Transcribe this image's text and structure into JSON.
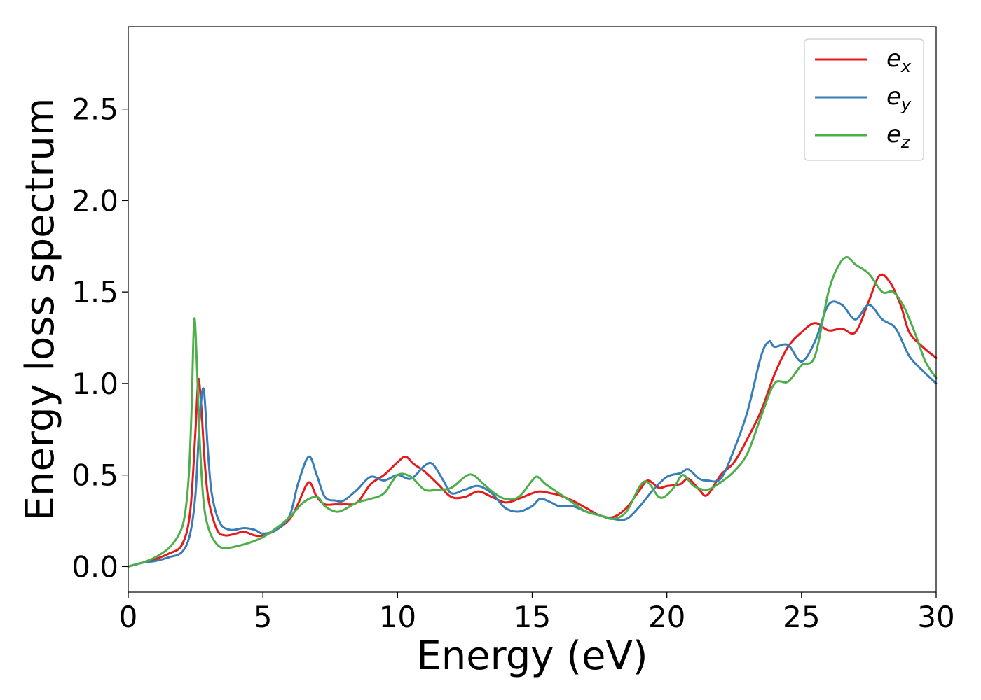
{
  "chart_data": {
    "type": "line",
    "title": "",
    "xlabel": "Energy (eV)",
    "ylabel": "Energy loss spectrum",
    "xlim": [
      0,
      30
    ],
    "ylim": [
      -0.14,
      2.95
    ],
    "xticks": [
      "0",
      "5",
      "10",
      "15",
      "20",
      "25",
      "30"
    ],
    "yticks": [
      "0.0",
      "0.5",
      "1.0",
      "1.5",
      "2.0",
      "2.5"
    ],
    "grid": false,
    "legend_position": "top-right",
    "series": [
      {
        "name": "e_x",
        "name_base": "e",
        "name_sub": "x",
        "color": "#e41a1c",
        "x": [
          0,
          0.5,
          1.0,
          1.5,
          2.0,
          2.3,
          2.5,
          2.6,
          2.7,
          2.85,
          3.0,
          3.3,
          3.6,
          4.0,
          4.3,
          4.7,
          5.0,
          5.5,
          6.0,
          6.3,
          6.7,
          7.0,
          7.3,
          7.7,
          8.0,
          8.5,
          9.0,
          9.5,
          10.0,
          10.3,
          10.6,
          11.0,
          11.5,
          12.0,
          12.5,
          13.0,
          13.5,
          14.0,
          14.5,
          15.0,
          15.3,
          15.7,
          16.0,
          16.5,
          17.0,
          17.5,
          18.0,
          18.5,
          19.0,
          19.3,
          19.7,
          20.0,
          20.5,
          20.8,
          21.2,
          21.5,
          22.0,
          22.5,
          23.0,
          23.5,
          24.0,
          24.5,
          25.0,
          25.5,
          26.0,
          26.5,
          27.0,
          27.5,
          27.9,
          28.3,
          28.7,
          29.0,
          29.5,
          30.0
        ],
        "y": [
          0.0,
          0.02,
          0.04,
          0.07,
          0.12,
          0.3,
          0.75,
          1.02,
          0.9,
          0.55,
          0.35,
          0.2,
          0.17,
          0.18,
          0.19,
          0.17,
          0.17,
          0.2,
          0.26,
          0.34,
          0.46,
          0.38,
          0.34,
          0.34,
          0.34,
          0.35,
          0.45,
          0.5,
          0.57,
          0.6,
          0.56,
          0.52,
          0.45,
          0.38,
          0.38,
          0.41,
          0.38,
          0.35,
          0.37,
          0.4,
          0.41,
          0.4,
          0.39,
          0.36,
          0.32,
          0.28,
          0.27,
          0.32,
          0.42,
          0.47,
          0.43,
          0.44,
          0.45,
          0.48,
          0.42,
          0.39,
          0.5,
          0.57,
          0.7,
          0.85,
          1.05,
          1.2,
          1.28,
          1.33,
          1.29,
          1.3,
          1.28,
          1.45,
          1.59,
          1.55,
          1.42,
          1.28,
          1.2,
          1.14
        ]
      },
      {
        "name": "e_y",
        "name_base": "e",
        "name_sub": "y",
        "color": "#377eb8",
        "x": [
          0,
          0.5,
          1.0,
          1.5,
          2.0,
          2.3,
          2.5,
          2.65,
          2.8,
          2.95,
          3.1,
          3.4,
          3.8,
          4.3,
          4.7,
          5.0,
          5.5,
          6.0,
          6.3,
          6.7,
          7.0,
          7.3,
          7.7,
          8.0,
          8.5,
          9.0,
          9.5,
          10.0,
          10.5,
          11.0,
          11.3,
          11.7,
          12.0,
          12.5,
          13.0,
          13.5,
          14.0,
          14.5,
          15.0,
          15.3,
          15.7,
          16.0,
          16.5,
          17.0,
          17.5,
          18.0,
          18.5,
          19.0,
          19.5,
          20.0,
          20.5,
          20.8,
          21.2,
          21.5,
          22.0,
          22.5,
          23.0,
          23.5,
          23.8,
          24.0,
          24.5,
          25.0,
          25.5,
          26.0,
          26.5,
          27.0,
          27.5,
          28.0,
          28.5,
          29.0,
          29.5,
          30.0
        ],
        "y": [
          0.0,
          0.02,
          0.03,
          0.05,
          0.08,
          0.18,
          0.4,
          0.8,
          0.97,
          0.65,
          0.4,
          0.24,
          0.2,
          0.21,
          0.2,
          0.18,
          0.2,
          0.28,
          0.45,
          0.6,
          0.5,
          0.38,
          0.36,
          0.36,
          0.42,
          0.49,
          0.47,
          0.5,
          0.48,
          0.55,
          0.56,
          0.47,
          0.4,
          0.42,
          0.44,
          0.4,
          0.32,
          0.3,
          0.33,
          0.37,
          0.35,
          0.33,
          0.33,
          0.3,
          0.28,
          0.26,
          0.26,
          0.33,
          0.42,
          0.49,
          0.51,
          0.53,
          0.48,
          0.47,
          0.48,
          0.64,
          0.85,
          1.15,
          1.23,
          1.2,
          1.21,
          1.12,
          1.23,
          1.43,
          1.43,
          1.35,
          1.43,
          1.35,
          1.3,
          1.15,
          1.07,
          1.0
        ]
      },
      {
        "name": "e_z",
        "name_base": "e",
        "name_sub": "z",
        "color": "#4daf4a",
        "x": [
          0,
          0.5,
          1.0,
          1.5,
          1.9,
          2.1,
          2.25,
          2.35,
          2.45,
          2.55,
          2.65,
          2.8,
          3.0,
          3.3,
          3.6,
          4.0,
          4.5,
          5.0,
          5.5,
          6.0,
          6.5,
          7.0,
          7.3,
          7.7,
          8.0,
          8.5,
          9.0,
          9.5,
          10.0,
          10.5,
          11.0,
          11.5,
          12.0,
          12.5,
          12.8,
          13.2,
          13.6,
          14.0,
          14.5,
          15.0,
          15.2,
          15.5,
          16.0,
          16.5,
          17.0,
          17.5,
          18.0,
          18.5,
          19.0,
          19.3,
          19.7,
          20.0,
          20.3,
          20.6,
          21.0,
          21.5,
          22.0,
          22.5,
          23.0,
          23.5,
          24.0,
          24.5,
          25.0,
          25.5,
          26.0,
          26.4,
          26.7,
          27.0,
          27.5,
          28.0,
          28.4,
          28.8,
          29.2,
          29.6,
          30.0
        ],
        "y": [
          0.0,
          0.02,
          0.05,
          0.1,
          0.18,
          0.28,
          0.5,
          0.85,
          1.35,
          1.1,
          0.7,
          0.35,
          0.2,
          0.12,
          0.1,
          0.11,
          0.13,
          0.16,
          0.21,
          0.27,
          0.35,
          0.38,
          0.33,
          0.3,
          0.31,
          0.35,
          0.37,
          0.4,
          0.5,
          0.49,
          0.42,
          0.42,
          0.43,
          0.49,
          0.5,
          0.45,
          0.4,
          0.37,
          0.38,
          0.47,
          0.49,
          0.45,
          0.4,
          0.35,
          0.3,
          0.28,
          0.26,
          0.3,
          0.44,
          0.46,
          0.38,
          0.39,
          0.44,
          0.5,
          0.44,
          0.42,
          0.46,
          0.52,
          0.62,
          0.82,
          1.0,
          1.01,
          1.1,
          1.15,
          1.5,
          1.65,
          1.69,
          1.65,
          1.6,
          1.5,
          1.5,
          1.42,
          1.28,
          1.12,
          1.03
        ]
      }
    ]
  }
}
